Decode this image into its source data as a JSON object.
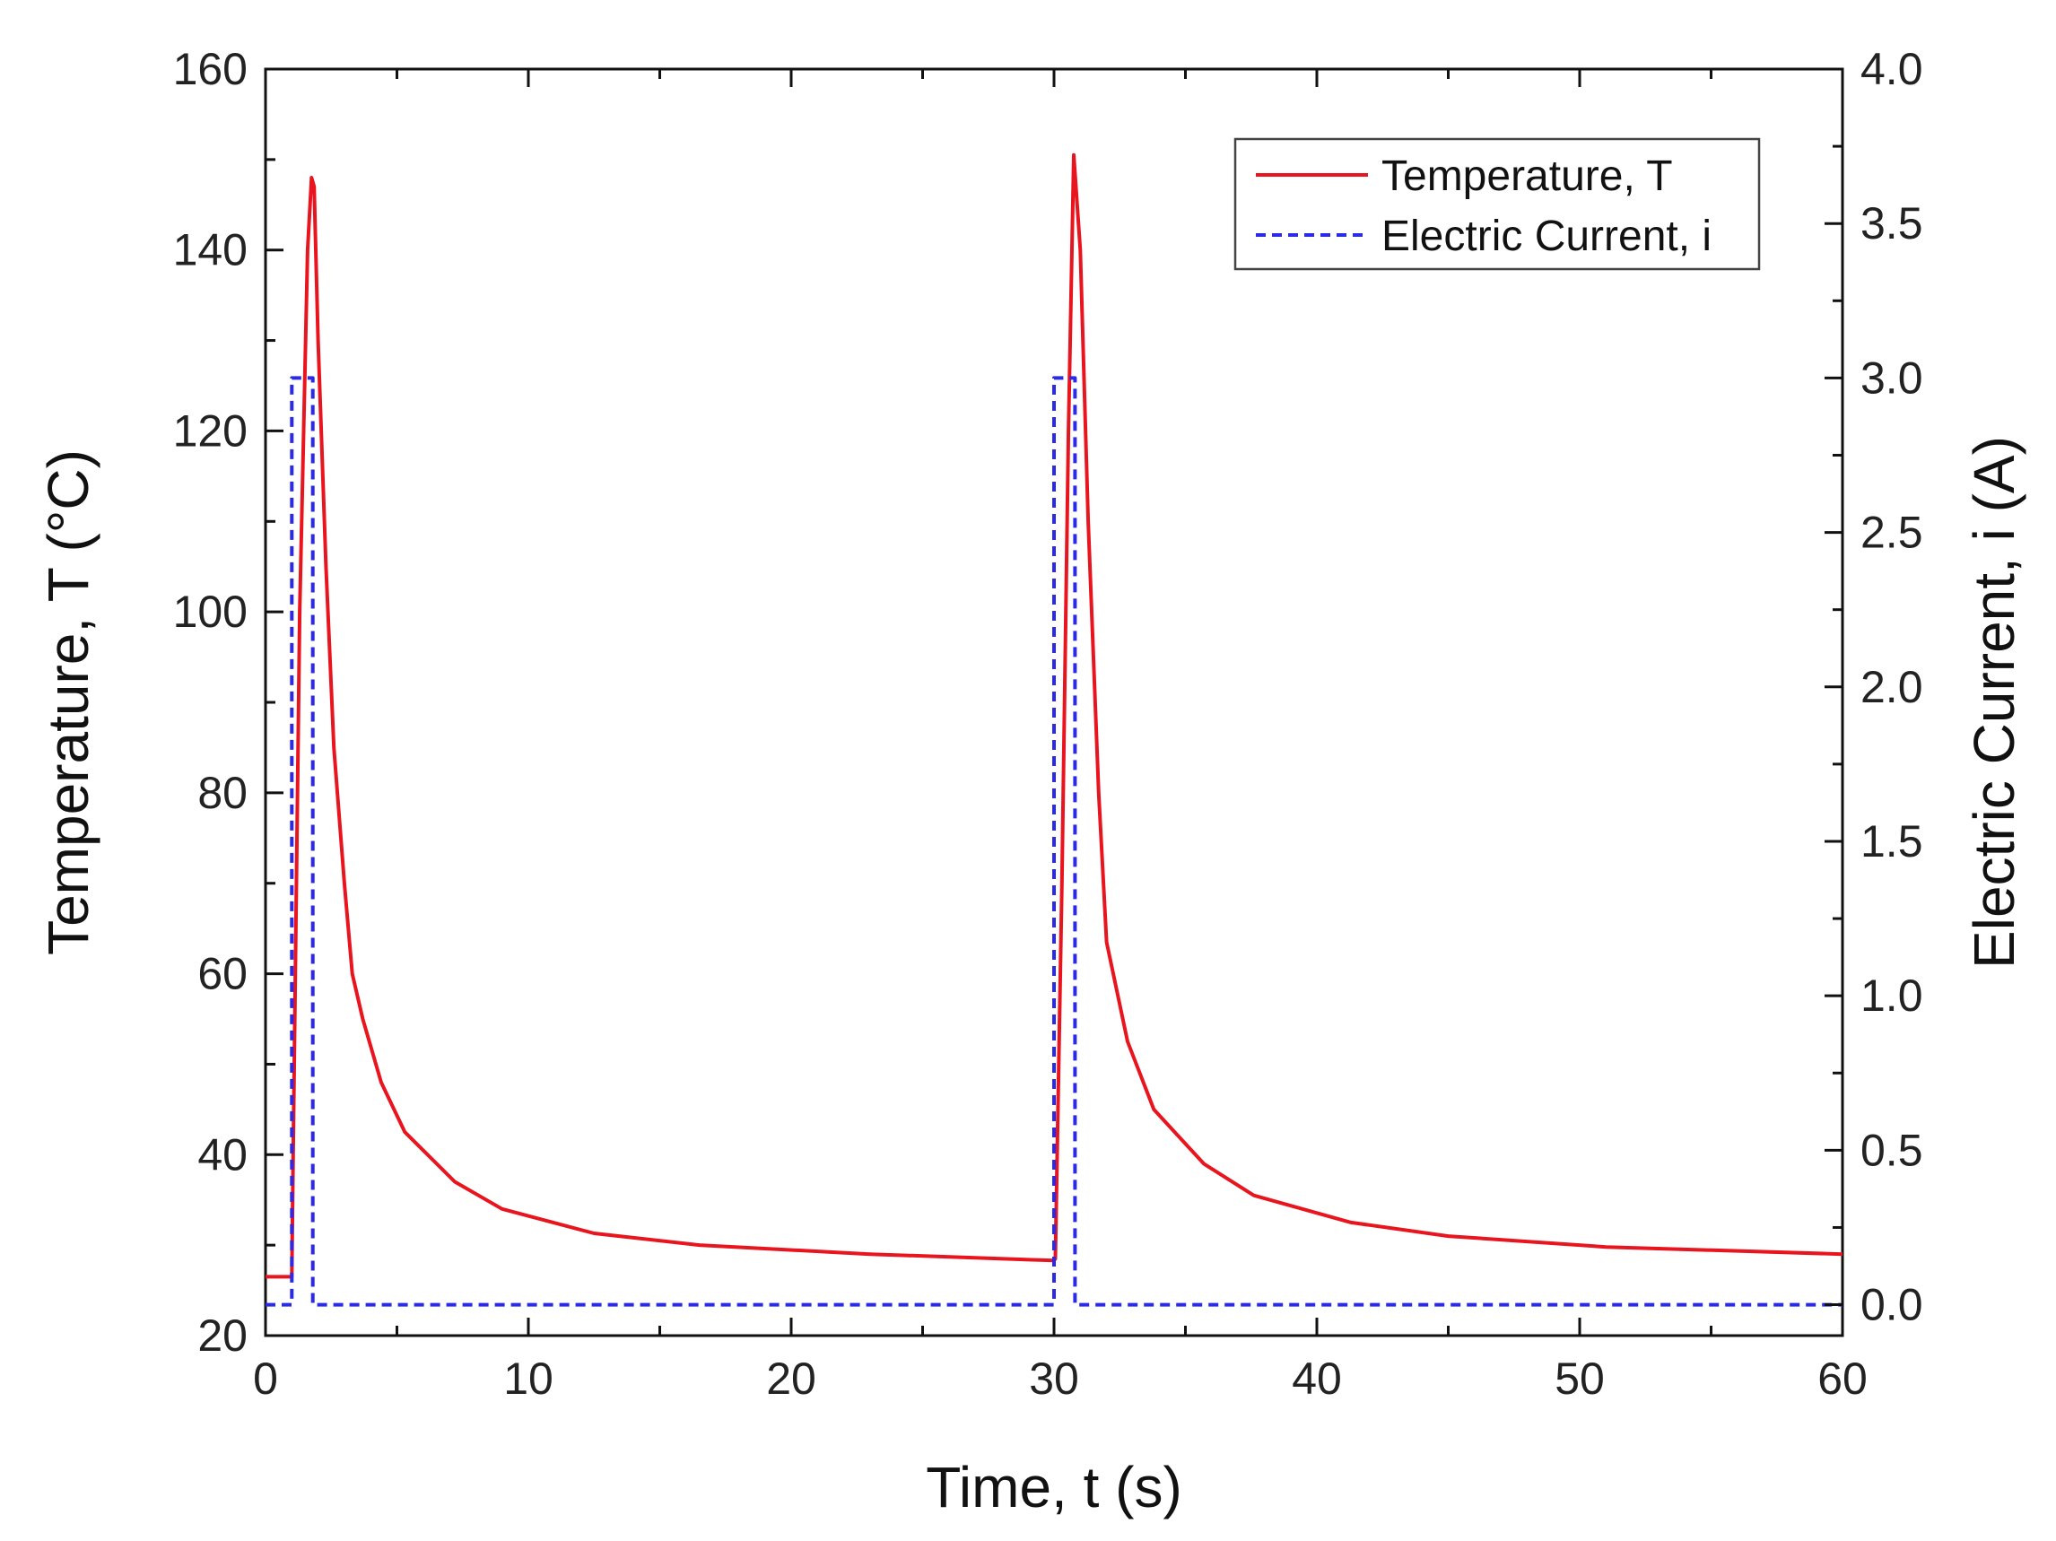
{
  "chart_data": {
    "type": "line",
    "title": "",
    "xlabel": "Time, t (s)",
    "ylabel_left": "Temperature, T (°C)",
    "ylabel_right": "Electric Current, i (A)",
    "xlim": [
      0,
      60
    ],
    "ylim_left": [
      20,
      160
    ],
    "ylim_right": [
      -0.1,
      4.0
    ],
    "x_ticks": [
      "0",
      "10",
      "20",
      "30",
      "40",
      "50",
      "60"
    ],
    "y_left_ticks": [
      "20",
      "40",
      "60",
      "80",
      "100",
      "120",
      "140",
      "160"
    ],
    "y_right_ticks": [
      "0.0",
      "0.5",
      "1.0",
      "1.5",
      "2.0",
      "2.5",
      "3.0",
      "3.5",
      "4.0"
    ],
    "legend_position": "top-right",
    "grid": false,
    "series": [
      {
        "name": "Temperature, T",
        "axis": "left",
        "color": "#e8141e",
        "style": "solid",
        "x": [
          0,
          1.0,
          1.05,
          1.3,
          1.6,
          1.75,
          1.85,
          2.0,
          2.3,
          2.6,
          3.0,
          3.3,
          3.7,
          4.4,
          5.3,
          7.2,
          9.0,
          12.5,
          16.5,
          23.0,
          30.0,
          30.05,
          30.3,
          30.55,
          30.75,
          31.0,
          31.3,
          31.7,
          32.0,
          32.8,
          33.8,
          35.7,
          37.6,
          41.3,
          45.0,
          51.0,
          60.0
        ],
        "y": [
          26.5,
          26.5,
          40,
          100,
          140,
          148,
          147,
          130,
          105,
          85,
          70,
          60,
          55,
          48,
          42.5,
          37,
          34,
          31.3,
          30,
          29,
          28.3,
          28.5,
          70,
          120,
          150.5,
          140,
          110,
          80,
          63.5,
          52.5,
          45,
          39,
          35.5,
          32.5,
          31,
          29.8,
          29
        ]
      },
      {
        "name": "Electric Current, i",
        "axis": "right",
        "color": "#2a2ae8",
        "style": "dashed",
        "x": [
          0,
          1.0,
          1.0,
          1.8,
          1.8,
          30.0,
          30.0,
          30.8,
          30.8,
          60.0
        ],
        "y": [
          0,
          0,
          3.0,
          3.0,
          0,
          0,
          3.0,
          3.0,
          0,
          0
        ]
      }
    ]
  }
}
